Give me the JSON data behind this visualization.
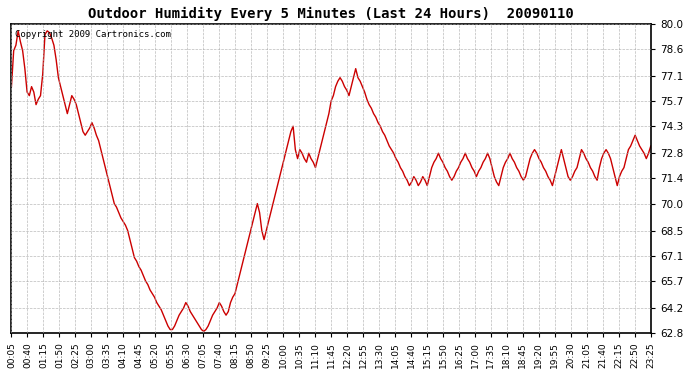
{
  "title": "Outdoor Humidity Every 5 Minutes (Last 24 Hours)  20090110",
  "copyright_text": "Copyright 2009 Cartronics.com",
  "line_color": "#cc0000",
  "background_color": "#ffffff",
  "grid_color": "#aaaaaa",
  "ylim": [
    62.8,
    80.0
  ],
  "yticks": [
    62.8,
    64.2,
    65.7,
    67.1,
    68.5,
    70.0,
    71.4,
    72.8,
    74.3,
    75.7,
    77.1,
    78.6,
    80.0
  ],
  "x_labels": [
    "00:05",
    "00:40",
    "01:15",
    "01:50",
    "02:25",
    "03:00",
    "03:35",
    "04:10",
    "04:45",
    "05:20",
    "05:55",
    "06:30",
    "07:05",
    "07:40",
    "08:15",
    "08:50",
    "09:25",
    "10:00",
    "10:35",
    "11:10",
    "11:45",
    "12:20",
    "12:55",
    "13:30",
    "14:05",
    "14:40",
    "15:15",
    "15:50",
    "16:25",
    "17:00",
    "17:35",
    "18:10",
    "18:45",
    "19:20",
    "19:55",
    "20:30",
    "21:05",
    "21:40",
    "22:15",
    "22:50",
    "23:25"
  ],
  "y_values": [
    76.5,
    78.5,
    78.8,
    79.6,
    79.0,
    78.5,
    77.5,
    76.2,
    76.0,
    76.5,
    76.2,
    75.5,
    75.8,
    76.0,
    77.2,
    79.4,
    79.6,
    79.5,
    79.2,
    78.8,
    78.0,
    77.0,
    76.5,
    76.0,
    75.5,
    75.0,
    75.5,
    76.0,
    75.8,
    75.5,
    75.0,
    74.5,
    74.0,
    73.8,
    74.0,
    74.2,
    74.5,
    74.2,
    73.8,
    73.5,
    73.0,
    72.5,
    72.0,
    71.5,
    71.0,
    70.5,
    70.0,
    69.8,
    69.5,
    69.2,
    69.0,
    68.8,
    68.5,
    68.0,
    67.5,
    67.0,
    66.8,
    66.5,
    66.3,
    66.0,
    65.7,
    65.5,
    65.2,
    65.0,
    64.8,
    64.5,
    64.3,
    64.1,
    63.8,
    63.5,
    63.2,
    63.0,
    63.0,
    63.2,
    63.5,
    63.8,
    64.0,
    64.2,
    64.5,
    64.3,
    64.0,
    63.8,
    63.6,
    63.4,
    63.2,
    63.0,
    62.9,
    63.0,
    63.2,
    63.5,
    63.8,
    64.0,
    64.2,
    64.5,
    64.3,
    64.0,
    63.8,
    64.0,
    64.5,
    64.8,
    65.0,
    65.5,
    66.0,
    66.5,
    67.0,
    67.5,
    68.0,
    68.5,
    69.0,
    69.5,
    70.0,
    69.5,
    68.5,
    68.0,
    68.5,
    69.0,
    69.5,
    70.0,
    70.5,
    71.0,
    71.5,
    72.0,
    72.5,
    73.0,
    73.5,
    74.0,
    74.3,
    73.0,
    72.5,
    73.0,
    72.8,
    72.5,
    72.3,
    72.8,
    72.5,
    72.3,
    72.0,
    72.5,
    73.0,
    73.5,
    74.0,
    74.5,
    75.0,
    75.7,
    76.0,
    76.5,
    76.8,
    77.0,
    76.8,
    76.5,
    76.3,
    76.0,
    76.5,
    77.0,
    77.5,
    77.0,
    76.8,
    76.5,
    76.2,
    75.8,
    75.5,
    75.3,
    75.0,
    74.8,
    74.5,
    74.3,
    74.0,
    73.8,
    73.5,
    73.2,
    73.0,
    72.8,
    72.5,
    72.3,
    72.0,
    71.8,
    71.5,
    71.3,
    71.0,
    71.2,
    71.5,
    71.3,
    71.0,
    71.2,
    71.5,
    71.3,
    71.0,
    71.5,
    72.0,
    72.3,
    72.5,
    72.8,
    72.5,
    72.3,
    72.0,
    71.8,
    71.5,
    71.3,
    71.5,
    71.8,
    72.0,
    72.3,
    72.5,
    72.8,
    72.5,
    72.3,
    72.0,
    71.8,
    71.5,
    71.8,
    72.0,
    72.3,
    72.5,
    72.8,
    72.5,
    72.0,
    71.5,
    71.2,
    71.0,
    71.5,
    72.0,
    72.3,
    72.5,
    72.8,
    72.5,
    72.3,
    72.0,
    71.8,
    71.5,
    71.3,
    71.5,
    72.0,
    72.5,
    72.8,
    73.0,
    72.8,
    72.5,
    72.3,
    72.0,
    71.8,
    71.5,
    71.3,
    71.0,
    71.5,
    72.0,
    72.5,
    73.0,
    72.5,
    72.0,
    71.5,
    71.3,
    71.5,
    71.8,
    72.0,
    72.5,
    73.0,
    72.8,
    72.5,
    72.3,
    72.0,
    71.8,
    71.5,
    71.3,
    72.0,
    72.5,
    72.8,
    73.0,
    72.8,
    72.5,
    72.0,
    71.5,
    71.0,
    71.5,
    71.8,
    72.0,
    72.5,
    73.0,
    73.2,
    73.5,
    73.8,
    73.5,
    73.2,
    73.0,
    72.8,
    72.5,
    72.8,
    73.2
  ]
}
